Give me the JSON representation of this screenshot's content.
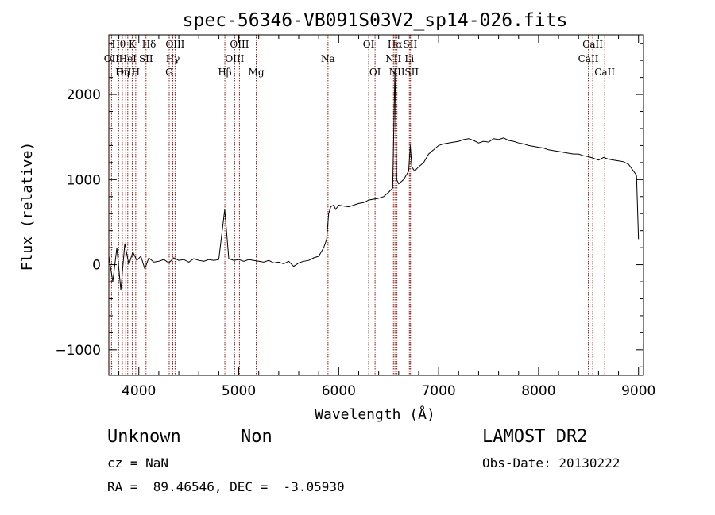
{
  "chart_data": {
    "type": "line",
    "title": "spec-56346-VB091S03V2_sp14-026.fits",
    "xlabel": "Wavelength (Å)",
    "ylabel": "Flux (relative)",
    "xlim": [
      3700,
      9050
    ],
    "ylim": [
      -1300,
      2700
    ],
    "xticks": [
      4000,
      5000,
      6000,
      7000,
      8000,
      9000
    ],
    "yticks": [
      -1000,
      0,
      1000,
      2000
    ],
    "grid": false,
    "colors": {
      "spectrum": "#000000",
      "line_markers": "#8b1a1a"
    },
    "series": [
      {
        "x": [
          3700,
          3740,
          3780,
          3820,
          3860,
          3900,
          3940,
          3980,
          4020,
          4060,
          4100,
          4150,
          4200,
          4250,
          4300,
          4350,
          4400,
          4450,
          4500,
          4550,
          4600,
          4650,
          4700,
          4750,
          4800,
          4860,
          4900,
          4950,
          5000,
          5050,
          5100,
          5150,
          5200,
          5250,
          5300,
          5350,
          5400,
          5450,
          5500,
          5550,
          5600,
          5650,
          5700,
          5750,
          5800,
          5850,
          5880,
          5900,
          5920,
          5950,
          5970,
          6000,
          6050,
          6100,
          6150,
          6200,
          6250,
          6300,
          6350,
          6400,
          6450,
          6500,
          6540,
          6563,
          6580,
          6600,
          6650,
          6700,
          6716,
          6731,
          6760,
          6800,
          6850,
          6900,
          6950,
          7000,
          7050,
          7100,
          7150,
          7200,
          7250,
          7300,
          7350,
          7400,
          7450,
          7500,
          7550,
          7600,
          7650,
          7700,
          7750,
          7800,
          7850,
          7900,
          7950,
          8000,
          8050,
          8100,
          8150,
          8200,
          8250,
          8300,
          8350,
          8400,
          8450,
          8500,
          8550,
          8600,
          8650,
          8700,
          8750,
          8800,
          8850,
          8900,
          8950,
          8980,
          9000
        ],
        "y": [
          100,
          -200,
          200,
          -300,
          250,
          0,
          150,
          50,
          100,
          -50,
          80,
          30,
          40,
          60,
          20,
          80,
          50,
          60,
          30,
          70,
          50,
          40,
          60,
          50,
          60,
          650,
          70,
          50,
          60,
          40,
          60,
          50,
          40,
          30,
          50,
          20,
          30,
          10,
          40,
          -20,
          20,
          40,
          50,
          80,
          100,
          200,
          300,
          600,
          680,
          700,
          650,
          700,
          690,
          680,
          700,
          720,
          730,
          760,
          770,
          780,
          800,
          850,
          900,
          2300,
          1000,
          950,
          1000,
          1100,
          1400,
          1150,
          1100,
          1150,
          1200,
          1300,
          1350,
          1400,
          1420,
          1430,
          1440,
          1450,
          1470,
          1480,
          1460,
          1430,
          1450,
          1440,
          1480,
          1470,
          1490,
          1460,
          1450,
          1430,
          1420,
          1400,
          1390,
          1380,
          1370,
          1350,
          1340,
          1330,
          1320,
          1310,
          1300,
          1300,
          1280,
          1270,
          1250,
          1230,
          1260,
          1240,
          1230,
          1220,
          1210,
          1180,
          1100,
          1050,
          300
        ]
      }
    ],
    "line_markers": [
      {
        "label": "Hθ",
        "x": 3798,
        "row": 1
      },
      {
        "label": "OII",
        "x": 3727,
        "row": 2
      },
      {
        "label": "OIII",
        "x": 3869,
        "row": 3
      },
      {
        "label": "HeI",
        "x": 3889,
        "row": 2
      },
      {
        "label": "Hη",
        "x": 3835,
        "row": 3
      },
      {
        "label": "K",
        "x": 3934,
        "row": 1
      },
      {
        "label": "H",
        "x": 3969,
        "row": 3
      },
      {
        "label": "SII",
        "x": 4072,
        "row": 2
      },
      {
        "label": "Hδ",
        "x": 4102,
        "row": 1
      },
      {
        "label": "OIII",
        "x": 4363,
        "row": 1
      },
      {
        "label": "Hγ",
        "x": 4340,
        "row": 2
      },
      {
        "label": "G",
        "x": 4304,
        "row": 3
      },
      {
        "label": "Hβ",
        "x": 4861,
        "row": 3
      },
      {
        "label": "OIII",
        "x": 5007,
        "row": 1
      },
      {
        "label": "OIII",
        "x": 4959,
        "row": 2
      },
      {
        "label": "Mg",
        "x": 5175,
        "row": 3
      },
      {
        "label": "Na",
        "x": 5893,
        "row": 2
      },
      {
        "label": "OI",
        "x": 6300,
        "row": 1
      },
      {
        "label": "OI",
        "x": 6364,
        "row": 3
      },
      {
        "label": "Hα",
        "x": 6563,
        "row": 1
      },
      {
        "label": "NII",
        "x": 6548,
        "row": 2
      },
      {
        "label": "NII",
        "x": 6583,
        "row": 3
      },
      {
        "label": "SII",
        "x": 6716,
        "row": 1
      },
      {
        "label": "Li",
        "x": 6707,
        "row": 2
      },
      {
        "label": "SII",
        "x": 6731,
        "row": 3
      },
      {
        "label": "CaII",
        "x": 8542,
        "row": 1
      },
      {
        "label": "CaII",
        "x": 8498,
        "row": 2
      },
      {
        "label": "CaII",
        "x": 8662,
        "row": 3
      }
    ]
  },
  "footer": {
    "object_class": "Unknown",
    "subclass": "Non",
    "survey": "LAMOST DR2",
    "cz_text": "cz = NaN",
    "obs_date_text": "Obs-Date: 20130222",
    "coords_text": "RA =  89.46546, DEC =  -3.05930"
  }
}
